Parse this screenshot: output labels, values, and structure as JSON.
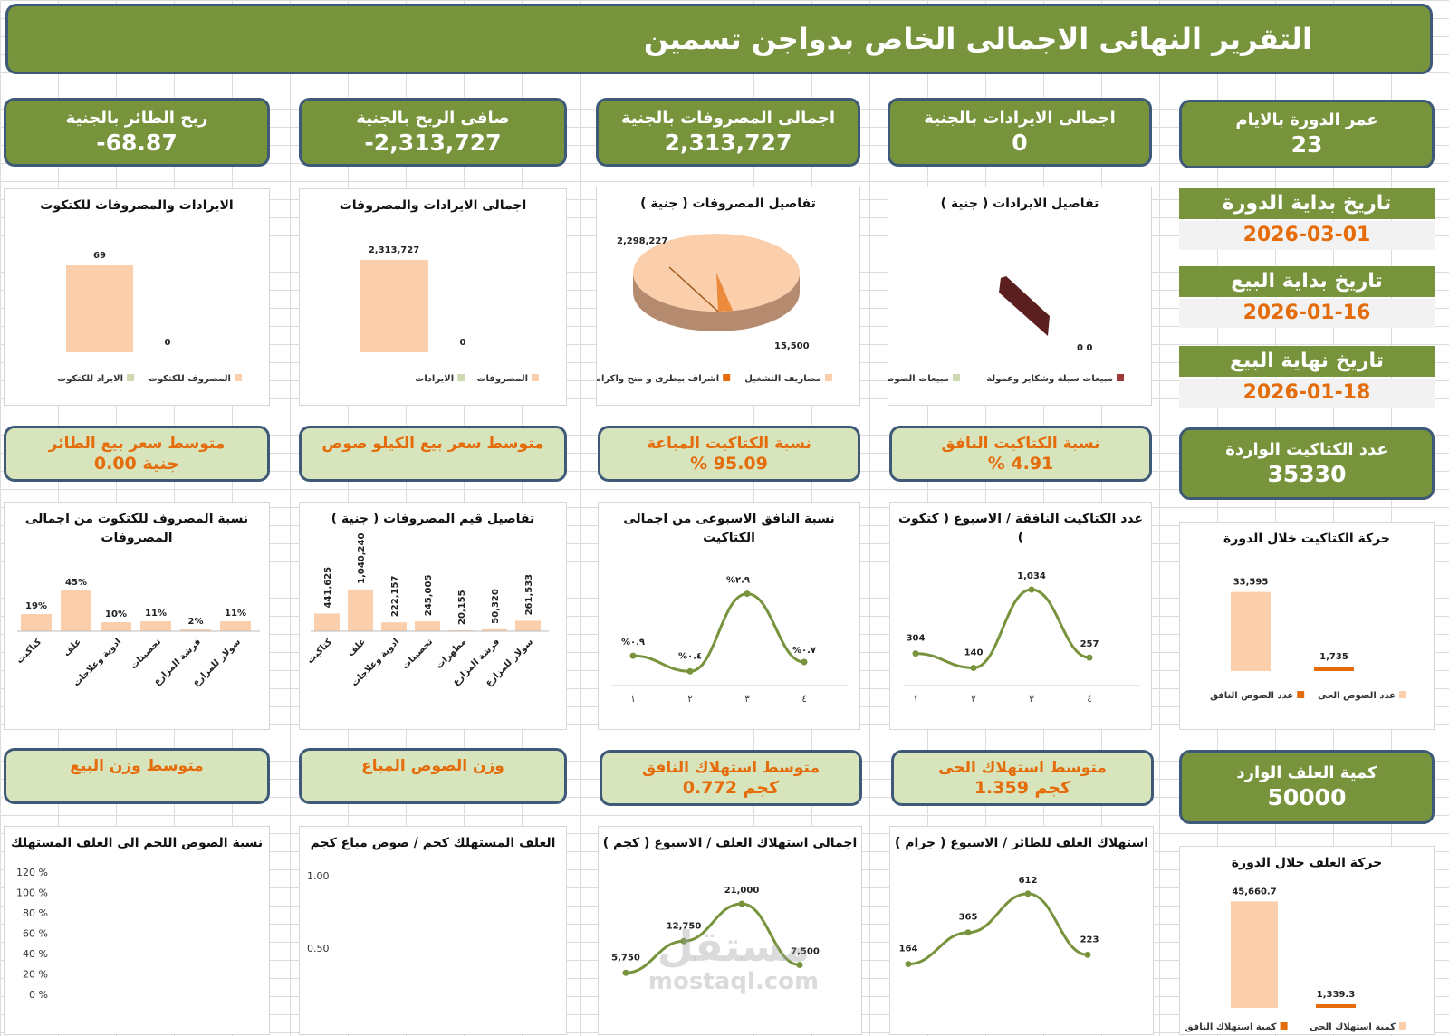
{
  "title": "التقرير النهائى الاجمالى الخاص بدواجن تسمين",
  "kpis_top": [
    {
      "label": "ربح الطائر بالجنية",
      "value": "-68.87"
    },
    {
      "label": "صافى الربح بالجنية",
      "value": "-2,313,727"
    },
    {
      "label": "اجمالى المصروفات بالجنية",
      "value": "2,313,727"
    },
    {
      "label": "اجمالى الايرادات بالجنية",
      "value": "0"
    },
    {
      "label": "عمر الدورة بالايام",
      "value": "23"
    }
  ],
  "dates": [
    {
      "label": "تاريخ بداية الدورة",
      "value": "2026-03-01"
    },
    {
      "label": "تاريخ بداية البيع",
      "value": "2026-01-16"
    },
    {
      "label": "تاريخ نهاية البيع",
      "value": "2026-01-18"
    }
  ],
  "kpis_mid": [
    {
      "label": "متوسط سعر بيع الطائر",
      "value": "0.00 جنية"
    },
    {
      "label": "متوسط سعر بيع الكيلو صوص",
      "value": ""
    },
    {
      "label": "نسبة الكتاكيت المباعة",
      "value": "% 95.09"
    },
    {
      "label": "نسبة الكتاكيت النافق",
      "value": "% 4.91"
    },
    {
      "label": "عدد الكتاكيت الواردة",
      "value": "35330"
    }
  ],
  "kpis_low": [
    {
      "label": "متوسط وزن البيع",
      "value": ""
    },
    {
      "label": "وزن الصوص المباع",
      "value": ""
    },
    {
      "label": "متوسط استهلاك النافق",
      "value": "0.772 كجم"
    },
    {
      "label": "متوسط استهلاك الحى",
      "value": "1.359 كجم"
    },
    {
      "label": "كمية العلف الوارد",
      "value": "50000"
    }
  ],
  "colors": {
    "green": "#77933c",
    "light_green": "#d8e4bc",
    "orange": "#e46c0a",
    "peach": "#fbcfac",
    "line": "#77933c",
    "border": "#3e5a78"
  },
  "watermark": {
    "arabic": "مستقل",
    "latin": "mostaql.com"
  },
  "chart_data": [
    {
      "id": "c1",
      "type": "bar",
      "title": "الايرادات والمصروفات للكتكوت",
      "categories": [
        "المصروف للكتكوت",
        "الايراد للكتكوت"
      ],
      "values": [
        69,
        0
      ],
      "labels": [
        "69",
        "0"
      ],
      "legend": [
        "المصروف للكتكوت",
        "الايراد للكتكوت"
      ]
    },
    {
      "id": "c2",
      "type": "bar",
      "title": "اجمالى الايرادات والمصروفات",
      "categories": [
        "المصروفات",
        "الايرادات"
      ],
      "values": [
        2313727,
        0
      ],
      "labels": [
        "2,313,727",
        "0"
      ],
      "legend": [
        "المصروفات",
        "الايرادات"
      ]
    },
    {
      "id": "c3",
      "type": "pie",
      "title": "تفاصيل المصروفات ( جنية )",
      "categories": [
        "مصاريف التشغيل",
        "اشراف بيطرى و منح واكراميات"
      ],
      "values": [
        2298227,
        15500
      ],
      "labels": [
        "2,298,227",
        "15,500"
      ],
      "legend": [
        "مصاريف التشغيل",
        "اشراف بيطرى و منح واكراميات"
      ]
    },
    {
      "id": "c4",
      "type": "pie",
      "title": "تفاصيل الايرادات ( جنية )",
      "categories": [
        "مبيعات سبلة وشكاير وعمولة",
        "مبيعات الصوص"
      ],
      "values": [
        0,
        0
      ],
      "labels": [
        "0",
        "0"
      ],
      "legend": [
        "مبيعات سبلة وشكاير وعمولة",
        "مبيعات الصوص"
      ]
    },
    {
      "id": "c5",
      "type": "bar",
      "title": "نسبة المصروف للكتكوت من اجمالى المصروفات",
      "categories": [
        "كتاكيت",
        "علف",
        "ادوية وعلاجات",
        "تحصينات",
        "فرشة المزارع",
        "سولار للمزارع"
      ],
      "values": [
        19,
        45,
        10,
        11,
        2,
        11
      ],
      "labels": [
        "19%",
        "45%",
        "10%",
        "11%",
        "2%",
        "11%"
      ],
      "ylim": [
        0,
        50
      ]
    },
    {
      "id": "c6",
      "type": "bar",
      "title": "تفاصيل قيم المصروفات ( جنية )",
      "categories": [
        "كتاكيت",
        "علف",
        "ادوية وعلاجات",
        "تحصينات",
        "مطهرات",
        "فرشة المزارع",
        "سولار للمزارع"
      ],
      "values": [
        441625,
        1040240,
        222157,
        245005,
        20155,
        50320,
        261533
      ],
      "labels": [
        "441,625",
        "1,040,240",
        "222,157",
        "245,005",
        "20,155",
        "50,320",
        "261,533"
      ],
      "ylim": [
        0,
        2300000
      ]
    },
    {
      "id": "c7",
      "type": "line",
      "title": "نسبة النافق الاسبوعى من اجمالى الكتاكيت",
      "x": [
        "١",
        "٢",
        "٣",
        "٤"
      ],
      "values": [
        0.9,
        0.4,
        2.9,
        0.7
      ],
      "labels": [
        "%٠.٩",
        "%٠.٤",
        "%٢.٩",
        "%٠.٧"
      ],
      "ylim": [
        0,
        3.5
      ]
    },
    {
      "id": "c8",
      "type": "line",
      "title": "عدد الكتاكيت النافقة / الاسبوع ( كتكوت )",
      "x": [
        "١",
        "٢",
        "٣",
        "٤"
      ],
      "values": [
        304,
        140,
        1034,
        257
      ],
      "labels": [
        "304",
        "140",
        "1,034",
        "257"
      ],
      "ylim": [
        0,
        1200
      ]
    },
    {
      "id": "c9",
      "type": "bar",
      "title": "حركة الكتاكيت خلال الدورة",
      "categories": [
        "عدد الصوص الحى",
        "عدد الصوص النافق"
      ],
      "values": [
        33595,
        1735
      ],
      "labels": [
        "33,595",
        "1,735"
      ],
      "legend": [
        "عدد الصوص الحى",
        "عدد الصوص النافق"
      ],
      "ylim": [
        0,
        40000
      ]
    },
    {
      "id": "c10",
      "type": "line",
      "title": "نسبة الصوص اللحم الى العلف المستهلك",
      "x": [],
      "values": [],
      "yticks": [
        "120 %",
        "100 %",
        "80 %",
        "60 %",
        "40 %",
        "20 %",
        "0 %"
      ],
      "ylim": [
        0,
        120
      ]
    },
    {
      "id": "c11",
      "type": "line",
      "title": "العلف المستهلك كجم / صوص مباع كجم",
      "x": [],
      "values": [],
      "yticks": [
        "1.00",
        "0.50"
      ],
      "ylim": [
        0,
        1
      ]
    },
    {
      "id": "c12",
      "type": "line",
      "title": "اجمالى استهلاك العلف / الاسبوع ( كجم )",
      "x": [
        "١",
        "٢",
        "٣",
        "٤"
      ],
      "values": [
        5750,
        12750,
        21000,
        7500
      ],
      "labels": [
        "5,750",
        "12,750",
        "21,000",
        "7,500"
      ],
      "ylim": [
        0,
        26000
      ]
    },
    {
      "id": "c13",
      "type": "line",
      "title": "استهلاك العلف للطائر / الاسبوع ( جرام )",
      "x": [
        "١",
        "٢",
        "٣",
        "٤"
      ],
      "values": [
        164,
        365,
        612,
        223
      ],
      "labels": [
        "164",
        "365",
        "612",
        "223"
      ],
      "ylim": [
        0,
        750
      ]
    },
    {
      "id": "c14",
      "type": "bar",
      "title": "حركة العلف خلال الدورة",
      "categories": [
        "كمية استهلاك الحى",
        "كمية استهلاك النافق"
      ],
      "values": [
        45660.7,
        1339.3
      ],
      "labels": [
        "45,660.7",
        "1,339.3"
      ],
      "legend": [
        "كمية استهلاك الحى",
        "كمية استهلاك النافق"
      ],
      "ylim": [
        0,
        52000
      ]
    }
  ]
}
